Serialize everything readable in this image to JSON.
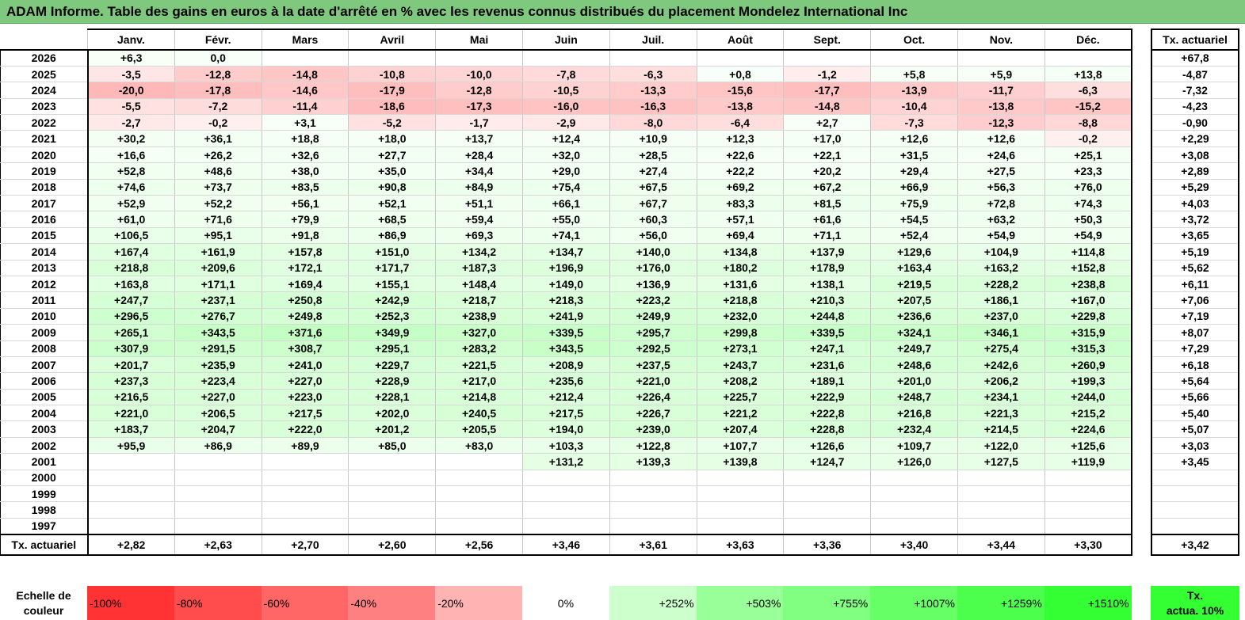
{
  "title": "ADAM Informe. Table des gains en euros à la date d'arrêté en % avec les revenus connus distribués du placement Mondelez International Inc",
  "months": [
    "Janv.",
    "Févr.",
    "Mars",
    "Avril",
    "Mai",
    "Juin",
    "Juil.",
    "Août",
    "Sept.",
    "Oct.",
    "Nov.",
    "Déc."
  ],
  "side_header": "Tx. actuariel",
  "rows": [
    {
      "year": "2026",
      "values": [
        "+6,3",
        "0,0",
        "",
        "",
        "",
        "",
        "",
        "",
        "",
        "",
        "",
        ""
      ],
      "tx": "+67,8"
    },
    {
      "year": "2025",
      "values": [
        "-3,5",
        "-12,8",
        "-14,8",
        "-10,8",
        "-10,0",
        "-7,8",
        "-6,3",
        "+0,8",
        "-1,2",
        "+5,8",
        "+5,9",
        "+13,8"
      ],
      "tx": "-4,87"
    },
    {
      "year": "2024",
      "values": [
        "-20,0",
        "-17,8",
        "-14,6",
        "-17,9",
        "-12,8",
        "-10,5",
        "-13,3",
        "-15,6",
        "-17,7",
        "-13,9",
        "-11,7",
        "-6,3"
      ],
      "tx": "-7,32"
    },
    {
      "year": "2023",
      "values": [
        "-5,5",
        "-7,2",
        "-11,4",
        "-18,6",
        "-17,3",
        "-16,0",
        "-16,3",
        "-13,8",
        "-14,8",
        "-10,4",
        "-13,8",
        "-15,2"
      ],
      "tx": "-4,23"
    },
    {
      "year": "2022",
      "values": [
        "-2,7",
        "-0,2",
        "+3,1",
        "-5,2",
        "-1,7",
        "-2,9",
        "-8,0",
        "-6,4",
        "+2,7",
        "-7,3",
        "-12,3",
        "-8,8"
      ],
      "tx": "-0,90"
    },
    {
      "year": "2021",
      "values": [
        "+30,2",
        "+36,1",
        "+18,8",
        "+18,0",
        "+13,7",
        "+12,4",
        "+10,9",
        "+12,3",
        "+17,0",
        "+12,6",
        "+12,6",
        "-0,2"
      ],
      "tx": "+2,29"
    },
    {
      "year": "2020",
      "values": [
        "+16,6",
        "+26,2",
        "+32,6",
        "+27,7",
        "+28,4",
        "+32,0",
        "+28,5",
        "+22,6",
        "+22,1",
        "+31,5",
        "+24,6",
        "+25,1"
      ],
      "tx": "+3,08"
    },
    {
      "year": "2019",
      "values": [
        "+52,8",
        "+48,6",
        "+38,0",
        "+35,0",
        "+34,4",
        "+29,0",
        "+27,4",
        "+22,2",
        "+20,2",
        "+29,4",
        "+27,5",
        "+23,3"
      ],
      "tx": "+2,89"
    },
    {
      "year": "2018",
      "values": [
        "+74,6",
        "+73,7",
        "+83,5",
        "+90,8",
        "+84,9",
        "+75,4",
        "+67,5",
        "+69,2",
        "+67,2",
        "+66,9",
        "+56,3",
        "+76,0"
      ],
      "tx": "+5,29"
    },
    {
      "year": "2017",
      "values": [
        "+52,9",
        "+52,2",
        "+56,1",
        "+52,1",
        "+51,1",
        "+66,1",
        "+67,7",
        "+83,3",
        "+81,5",
        "+75,9",
        "+72,8",
        "+74,3"
      ],
      "tx": "+4,03"
    },
    {
      "year": "2016",
      "values": [
        "+61,0",
        "+71,6",
        "+79,9",
        "+68,5",
        "+59,4",
        "+55,0",
        "+60,3",
        "+57,1",
        "+61,6",
        "+54,5",
        "+63,2",
        "+50,3"
      ],
      "tx": "+3,72"
    },
    {
      "year": "2015",
      "values": [
        "+106,5",
        "+95,1",
        "+91,8",
        "+86,9",
        "+69,3",
        "+74,1",
        "+56,0",
        "+69,4",
        "+71,1",
        "+52,4",
        "+54,9",
        "+54,9"
      ],
      "tx": "+3,65"
    },
    {
      "year": "2014",
      "values": [
        "+167,4",
        "+161,9",
        "+157,8",
        "+151,0",
        "+134,2",
        "+134,7",
        "+140,0",
        "+134,8",
        "+137,9",
        "+129,6",
        "+104,9",
        "+114,8"
      ],
      "tx": "+5,19"
    },
    {
      "year": "2013",
      "values": [
        "+218,8",
        "+209,6",
        "+172,1",
        "+171,7",
        "+187,3",
        "+196,9",
        "+176,0",
        "+180,2",
        "+178,9",
        "+163,4",
        "+163,2",
        "+152,8"
      ],
      "tx": "+5,62"
    },
    {
      "year": "2012",
      "values": [
        "+163,8",
        "+171,1",
        "+169,4",
        "+155,1",
        "+148,4",
        "+149,0",
        "+136,9",
        "+131,6",
        "+138,1",
        "+219,5",
        "+228,2",
        "+238,8"
      ],
      "tx": "+6,11"
    },
    {
      "year": "2011",
      "values": [
        "+247,7",
        "+237,1",
        "+250,8",
        "+242,9",
        "+218,7",
        "+218,3",
        "+223,2",
        "+218,8",
        "+210,3",
        "+207,5",
        "+186,1",
        "+167,0"
      ],
      "tx": "+7,06"
    },
    {
      "year": "2010",
      "values": [
        "+296,5",
        "+276,7",
        "+249,8",
        "+252,3",
        "+238,9",
        "+241,9",
        "+249,9",
        "+232,0",
        "+244,8",
        "+236,6",
        "+237,0",
        "+229,8"
      ],
      "tx": "+7,19"
    },
    {
      "year": "2009",
      "values": [
        "+265,1",
        "+343,5",
        "+371,6",
        "+349,9",
        "+327,0",
        "+339,5",
        "+295,7",
        "+299,8",
        "+339,5",
        "+324,1",
        "+346,1",
        "+315,9"
      ],
      "tx": "+8,07"
    },
    {
      "year": "2008",
      "values": [
        "+307,9",
        "+291,5",
        "+308,7",
        "+295,1",
        "+283,2",
        "+343,5",
        "+292,5",
        "+273,1",
        "+247,1",
        "+249,7",
        "+275,4",
        "+315,3"
      ],
      "tx": "+7,29"
    },
    {
      "year": "2007",
      "values": [
        "+201,7",
        "+235,9",
        "+241,0",
        "+229,7",
        "+221,5",
        "+208,9",
        "+237,5",
        "+243,7",
        "+231,6",
        "+248,6",
        "+242,6",
        "+260,9"
      ],
      "tx": "+6,18"
    },
    {
      "year": "2006",
      "values": [
        "+237,3",
        "+223,4",
        "+227,0",
        "+228,9",
        "+217,0",
        "+235,6",
        "+221,0",
        "+208,2",
        "+189,1",
        "+201,0",
        "+206,2",
        "+199,3"
      ],
      "tx": "+5,64"
    },
    {
      "year": "2005",
      "values": [
        "+216,5",
        "+227,0",
        "+223,0",
        "+228,1",
        "+214,8",
        "+212,4",
        "+226,4",
        "+225,7",
        "+222,9",
        "+248,7",
        "+234,1",
        "+244,0"
      ],
      "tx": "+5,66"
    },
    {
      "year": "2004",
      "values": [
        "+221,0",
        "+206,5",
        "+217,5",
        "+202,0",
        "+240,5",
        "+217,5",
        "+226,7",
        "+221,2",
        "+222,8",
        "+216,8",
        "+221,3",
        "+215,2"
      ],
      "tx": "+5,40"
    },
    {
      "year": "2003",
      "values": [
        "+183,7",
        "+204,7",
        "+222,0",
        "+201,2",
        "+205,5",
        "+194,0",
        "+239,0",
        "+207,4",
        "+228,8",
        "+232,4",
        "+214,5",
        "+224,6"
      ],
      "tx": "+5,07"
    },
    {
      "year": "2002",
      "values": [
        "+95,9",
        "+86,9",
        "+89,9",
        "+85,0",
        "+83,0",
        "+103,3",
        "+122,8",
        "+107,7",
        "+126,6",
        "+109,7",
        "+122,0",
        "+125,6"
      ],
      "tx": "+3,03"
    },
    {
      "year": "2001",
      "values": [
        "",
        "",
        "",
        "",
        "",
        "+131,2",
        "+139,3",
        "+139,8",
        "+124,7",
        "+126,0",
        "+127,5",
        "+119,9"
      ],
      "tx": "+3,45"
    },
    {
      "year": "2000",
      "values": [
        "",
        "",
        "",
        "",
        "",
        "",
        "",
        "",
        "",
        "",
        "",
        ""
      ],
      "tx": ""
    },
    {
      "year": "1999",
      "values": [
        "",
        "",
        "",
        "",
        "",
        "",
        "",
        "",
        "",
        "",
        "",
        ""
      ],
      "tx": ""
    },
    {
      "year": "1998",
      "values": [
        "",
        "",
        "",
        "",
        "",
        "",
        "",
        "",
        "",
        "",
        "",
        ""
      ],
      "tx": ""
    },
    {
      "year": "1997",
      "values": [
        "",
        "",
        "",
        "",
        "",
        "",
        "",
        "",
        "",
        "",
        "",
        ""
      ],
      "tx": ""
    }
  ],
  "footer": {
    "label": "Tx. actuariel",
    "values": [
      "+2,82",
      "+2,63",
      "+2,70",
      "+2,60",
      "+2,56",
      "+3,46",
      "+3,61",
      "+3,63",
      "+3,36",
      "+3,40",
      "+3,44",
      "+3,30"
    ],
    "total": "+3,42"
  },
  "legend": {
    "label_line1": "Echelle de",
    "label_line2": "couleur",
    "items": [
      {
        "label": "-100%",
        "color": "#ff3333"
      },
      {
        "label": "-80%",
        "color": "#ff4d4d"
      },
      {
        "label": "-60%",
        "color": "#ff6666"
      },
      {
        "label": "-40%",
        "color": "#ff8080"
      },
      {
        "label": "-20%",
        "color": "#ffb3b3"
      },
      {
        "label": "0%",
        "color": "#ffffff"
      },
      {
        "label": "+252%",
        "color": "#ccffcc"
      },
      {
        "label": "+503%",
        "color": "#99ff99"
      },
      {
        "label": "+755%",
        "color": "#80ff80"
      },
      {
        "label": "+1007%",
        "color": "#66ff66"
      },
      {
        "label": "+1259%",
        "color": "#4dff4d"
      },
      {
        "label": "+1510%",
        "color": "#33ff33"
      }
    ],
    "act_line1": "Tx.",
    "act_line2": "actua. 10%",
    "act_color": "#33ff33"
  }
}
